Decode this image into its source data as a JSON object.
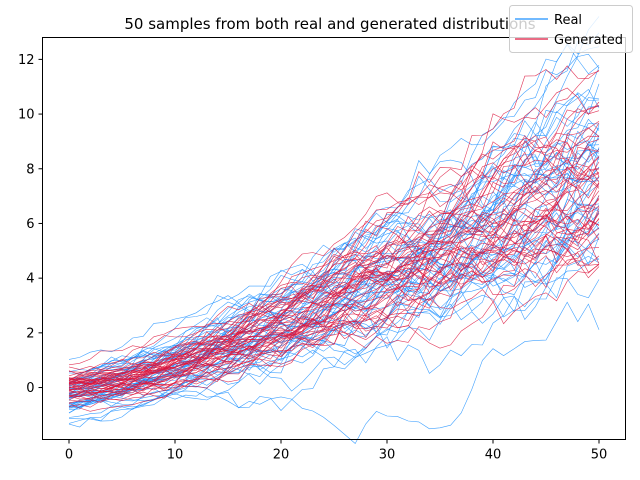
{
  "chart_data": {
    "type": "line",
    "title": "50 samples from both real and generated distributions",
    "xlabel": "",
    "ylabel": "",
    "xlim": [
      -2.5,
      52.5
    ],
    "ylim": [
      -1.9,
      12.8
    ],
    "x_ticks": [
      0,
      10,
      20,
      30,
      40,
      50
    ],
    "y_ticks": [
      0,
      2,
      4,
      6,
      8,
      10,
      12
    ],
    "x_tick_labels": [
      "0",
      "10",
      "20",
      "30",
      "40",
      "50"
    ],
    "y_tick_labels": [
      "0",
      "2",
      "4",
      "6",
      "8",
      "10",
      "12"
    ],
    "legend_position": "top-right",
    "grid": false,
    "series": [
      {
        "name": "Real",
        "color": "#1e90ff",
        "sample_count": 50,
        "x_range": [
          0,
          50
        ],
        "mean_curve": [
          {
            "x": 0,
            "y": -0.3
          },
          {
            "x": 5,
            "y": 0.2
          },
          {
            "x": 10,
            "y": 0.8
          },
          {
            "x": 15,
            "y": 1.4
          },
          {
            "x": 20,
            "y": 2.2
          },
          {
            "x": 25,
            "y": 3.2
          },
          {
            "x": 30,
            "y": 4.0
          },
          {
            "x": 35,
            "y": 4.8
          },
          {
            "x": 40,
            "y": 5.9
          },
          {
            "x": 45,
            "y": 7.0
          },
          {
            "x": 50,
            "y": 8.2
          }
        ]
      },
      {
        "name": "Generated",
        "color": "#dc143c",
        "sample_count": 50,
        "x_range": [
          0,
          50
        ],
        "mean_curve": [
          {
            "x": 0,
            "y": 0.1
          },
          {
            "x": 5,
            "y": 0.3
          },
          {
            "x": 10,
            "y": 0.8
          },
          {
            "x": 15,
            "y": 1.5
          },
          {
            "x": 20,
            "y": 2.3
          },
          {
            "x": 25,
            "y": 3.2
          },
          {
            "x": 30,
            "y": 4.1
          },
          {
            "x": 35,
            "y": 5.0
          },
          {
            "x": 40,
            "y": 6.0
          },
          {
            "x": 45,
            "y": 6.9
          },
          {
            "x": 50,
            "y": 7.6
          }
        ]
      }
    ]
  }
}
